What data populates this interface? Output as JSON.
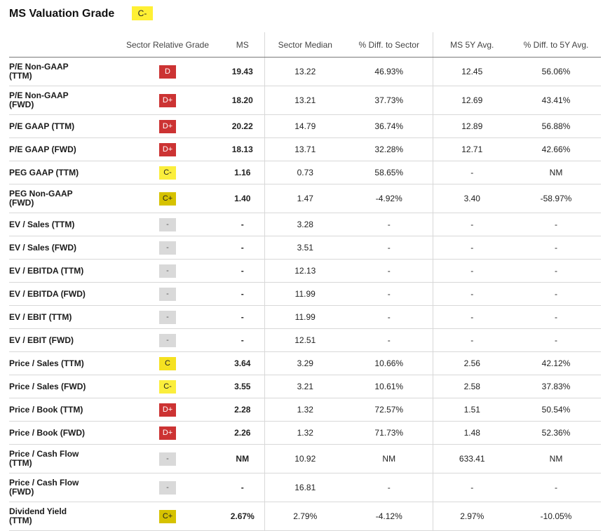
{
  "header": {
    "title": "MS Valuation Grade",
    "grade": "C-"
  },
  "columns": [
    "",
    "Sector Relative Grade",
    "MS",
    "Sector Median",
    "% Diff. to Sector",
    "MS 5Y Avg.",
    "% Diff. to 5Y Avg."
  ],
  "colors": {
    "D": "#cc3333",
    "D+": "#cc3333",
    "C": "#f5e121",
    "C-": "#fbee3c",
    "C+": "#d6c200",
    "-": "#d9d9d9"
  },
  "rows": [
    {
      "metric": "P/E Non-GAAP (TTM)",
      "l1": "P/E Non-GAAP",
      "l2": "(TTM)",
      "grade": "D",
      "ms": "19.43",
      "sector_median": "13.22",
      "diff_sector": "46.93%",
      "avg5y": "12.45",
      "diff_5y": "56.06%"
    },
    {
      "metric": "P/E Non-GAAP (FWD)",
      "l1": "P/E Non-GAAP",
      "l2": "(FWD)",
      "grade": "D+",
      "ms": "18.20",
      "sector_median": "13.21",
      "diff_sector": "37.73%",
      "avg5y": "12.69",
      "diff_5y": "43.41%"
    },
    {
      "metric": "P/E GAAP (TTM)",
      "l1": "P/E GAAP (TTM)",
      "l2": "",
      "grade": "D+",
      "ms": "20.22",
      "sector_median": "14.79",
      "diff_sector": "36.74%",
      "avg5y": "12.89",
      "diff_5y": "56.88%"
    },
    {
      "metric": "P/E GAAP (FWD)",
      "l1": "P/E GAAP (FWD)",
      "l2": "",
      "grade": "D+",
      "ms": "18.13",
      "sector_median": "13.71",
      "diff_sector": "32.28%",
      "avg5y": "12.71",
      "diff_5y": "42.66%"
    },
    {
      "metric": "PEG GAAP (TTM)",
      "l1": "PEG GAAP (TTM)",
      "l2": "",
      "grade": "C-",
      "ms": "1.16",
      "sector_median": "0.73",
      "diff_sector": "58.65%",
      "avg5y": "-",
      "diff_5y": "NM"
    },
    {
      "metric": "PEG Non-GAAP (FWD)",
      "l1": "PEG Non-GAAP",
      "l2": "(FWD)",
      "grade": "C+",
      "ms": "1.40",
      "sector_median": "1.47",
      "diff_sector": "-4.92%",
      "avg5y": "3.40",
      "diff_5y": "-58.97%"
    },
    {
      "metric": "EV / Sales (TTM)",
      "l1": "EV / Sales (TTM)",
      "l2": "",
      "grade": "-",
      "ms": "-",
      "sector_median": "3.28",
      "diff_sector": "-",
      "avg5y": "-",
      "diff_5y": "-"
    },
    {
      "metric": "EV / Sales (FWD)",
      "l1": "EV / Sales (FWD)",
      "l2": "",
      "grade": "-",
      "ms": "-",
      "sector_median": "3.51",
      "diff_sector": "-",
      "avg5y": "-",
      "diff_5y": "-"
    },
    {
      "metric": "EV / EBITDA (TTM)",
      "l1": "EV / EBITDA (TTM)",
      "l2": "",
      "grade": "-",
      "ms": "-",
      "sector_median": "12.13",
      "diff_sector": "-",
      "avg5y": "-",
      "diff_5y": "-"
    },
    {
      "metric": "EV / EBITDA (FWD)",
      "l1": "EV / EBITDA (FWD)",
      "l2": "",
      "grade": "-",
      "ms": "-",
      "sector_median": "11.99",
      "diff_sector": "-",
      "avg5y": "-",
      "diff_5y": "-"
    },
    {
      "metric": "EV / EBIT (TTM)",
      "l1": "EV / EBIT (TTM)",
      "l2": "",
      "grade": "-",
      "ms": "-",
      "sector_median": "11.99",
      "diff_sector": "-",
      "avg5y": "-",
      "diff_5y": "-"
    },
    {
      "metric": "EV / EBIT (FWD)",
      "l1": "EV / EBIT (FWD)",
      "l2": "",
      "grade": "-",
      "ms": "-",
      "sector_median": "12.51",
      "diff_sector": "-",
      "avg5y": "-",
      "diff_5y": "-"
    },
    {
      "metric": "Price / Sales (TTM)",
      "l1": "Price / Sales (TTM)",
      "l2": "",
      "grade": "C",
      "ms": "3.64",
      "sector_median": "3.29",
      "diff_sector": "10.66%",
      "avg5y": "2.56",
      "diff_5y": "42.12%"
    },
    {
      "metric": "Price / Sales (FWD)",
      "l1": "Price / Sales (FWD)",
      "l2": "",
      "grade": "C-",
      "ms": "3.55",
      "sector_median": "3.21",
      "diff_sector": "10.61%",
      "avg5y": "2.58",
      "diff_5y": "37.83%"
    },
    {
      "metric": "Price / Book (TTM)",
      "l1": "Price / Book (TTM)",
      "l2": "",
      "grade": "D+",
      "ms": "2.28",
      "sector_median": "1.32",
      "diff_sector": "72.57%",
      "avg5y": "1.51",
      "diff_5y": "50.54%"
    },
    {
      "metric": "Price / Book (FWD)",
      "l1": "Price / Book (FWD)",
      "l2": "",
      "grade": "D+",
      "ms": "2.26",
      "sector_median": "1.32",
      "diff_sector": "71.73%",
      "avg5y": "1.48",
      "diff_5y": "52.36%"
    },
    {
      "metric": "Price / Cash Flow (TTM)",
      "l1": "Price / Cash Flow",
      "l2": "(TTM)",
      "grade": "-",
      "ms": "NM",
      "sector_median": "10.92",
      "diff_sector": "NM",
      "avg5y": "633.41",
      "diff_5y": "NM"
    },
    {
      "metric": "Price / Cash Flow (FWD)",
      "l1": "Price / Cash Flow",
      "l2": "(FWD)",
      "grade": "-",
      "ms": "-",
      "sector_median": "16.81",
      "diff_sector": "-",
      "avg5y": "-",
      "diff_5y": "-"
    },
    {
      "metric": "Dividend Yield (TTM)",
      "l1": "Dividend Yield",
      "l2": "(TTM)",
      "grade": "C+",
      "ms": "2.67%",
      "sector_median": "2.79%",
      "diff_sector": "-4.12%",
      "avg5y": "2.97%",
      "diff_5y": "-10.05%"
    }
  ]
}
